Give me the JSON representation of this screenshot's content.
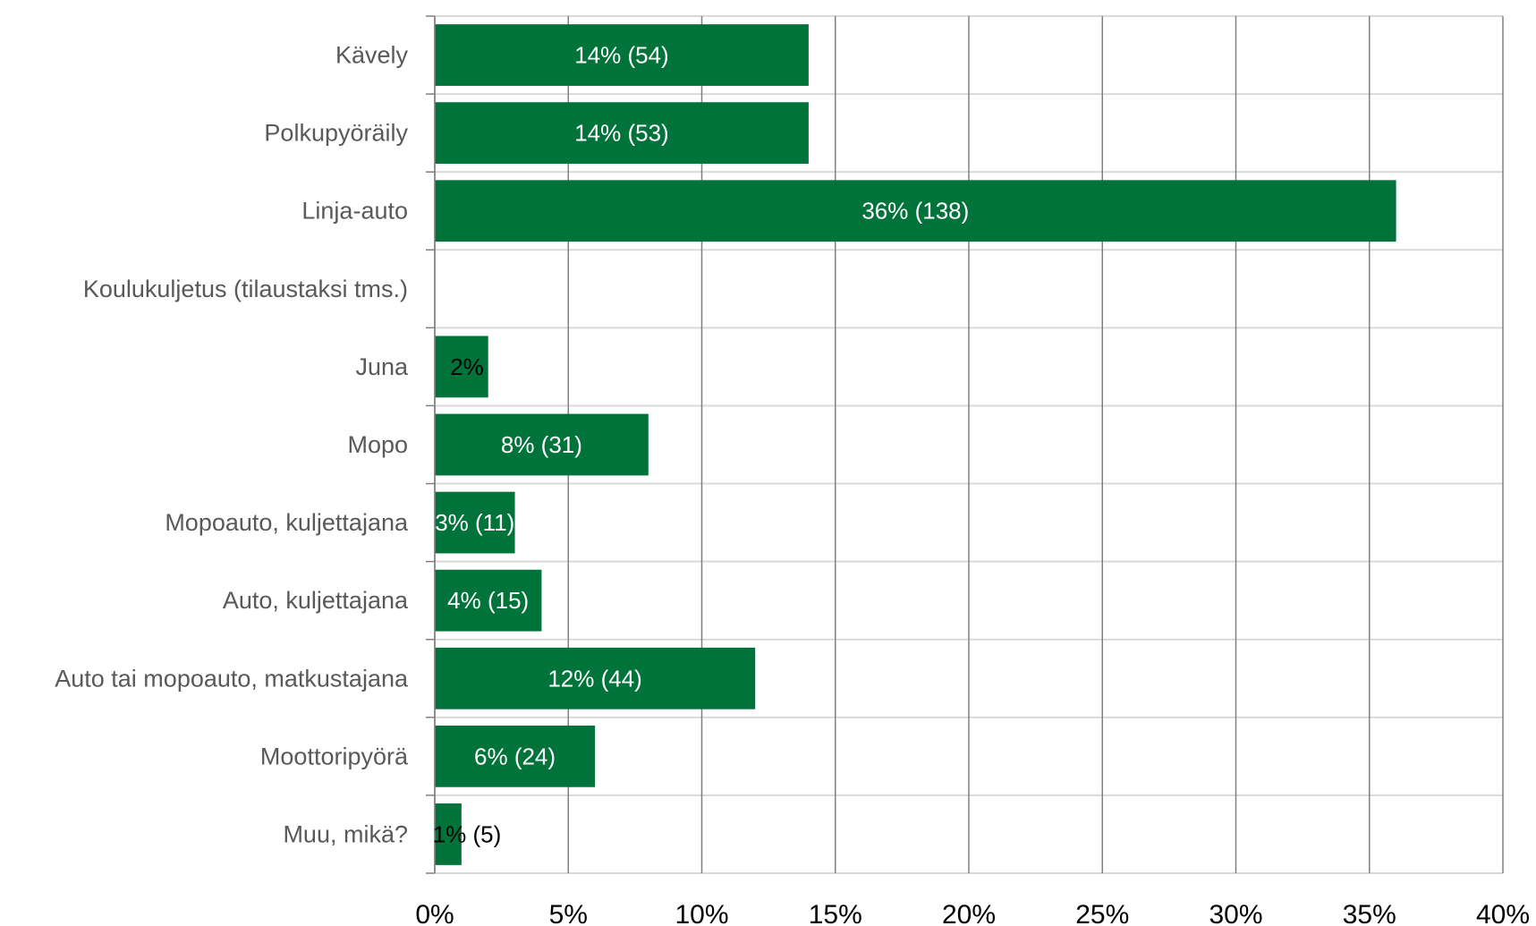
{
  "chart_data": {
    "type": "bar",
    "orientation": "horizontal",
    "title": "",
    "xlabel": "",
    "ylabel": "",
    "categories": [
      "Kävely",
      "Polkupyöräily",
      "Linja-auto",
      "Koulukuljetus (tilaustaksi tms.)",
      "Juna",
      "Mopo",
      "Mopoauto, kuljettajana",
      "Auto, kuljettajana",
      "Auto tai mopoauto, matkustajana",
      "Moottoripyörä",
      "Muu, mikä?"
    ],
    "values": [
      14,
      14,
      36,
      0,
      2,
      8,
      3,
      4,
      12,
      6,
      1
    ],
    "data_labels": [
      "14% (54)",
      "14% (53)",
      "36% (138)",
      "",
      "2%",
      "8% (31)",
      "3% (11)",
      "4% (15)",
      "12% (44)",
      "6% (24)",
      "1% (5)"
    ],
    "xlim": [
      0,
      40
    ],
    "x_ticks": [
      0,
      5,
      10,
      15,
      20,
      25,
      30,
      35,
      40
    ],
    "x_tick_labels": [
      "0%",
      "5%",
      "10%",
      "15%",
      "20%",
      "25%",
      "30%",
      "35%",
      "40%"
    ],
    "grid": true,
    "legend": "none",
    "colors": {
      "bar": "#00733A",
      "grid": "#D9D9D9",
      "axis": "#808080",
      "label_inside": "#FFFFFF",
      "label_outside": "#000000",
      "category_text": "#595959"
    }
  }
}
